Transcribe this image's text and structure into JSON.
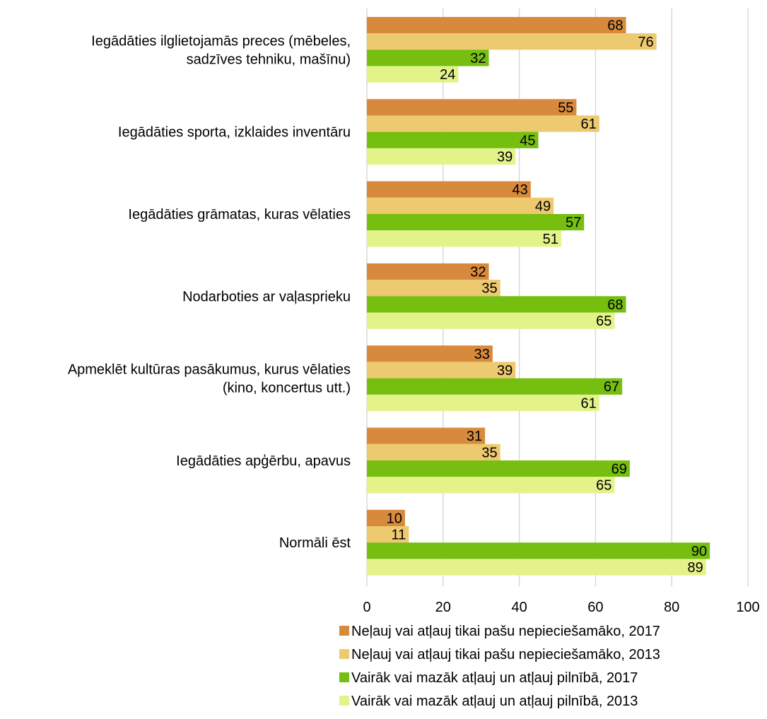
{
  "chart_data": {
    "type": "bar",
    "orientation": "horizontal",
    "categories": [
      [
        "Iegādāties ilglietojamās preces (mēbeles,",
        "sadzīves tehniku, mašīnu)"
      ],
      [
        "Iegādāties sporta, izklaides inventāru"
      ],
      [
        "Iegādāties grāmatas, kuras vēlaties"
      ],
      [
        "Nodarboties ar vaļasprieku"
      ],
      [
        "Apmeklēt kultūras pasākumus, kurus vēlaties",
        "(kino, koncertus utt.)"
      ],
      [
        "Iegādāties apģērbu, apavus"
      ],
      [
        "Normāli ēst"
      ]
    ],
    "series": [
      {
        "name": "Neļauj vai atļauj tikai pašu nepieciešamāko, 2017",
        "color": "#D88A3C",
        "values": [
          68,
          55,
          43,
          32,
          33,
          31,
          10
        ]
      },
      {
        "name": "Neļauj vai atļauj tikai pašu nepieciešamāko, 2013",
        "color": "#EDC96F",
        "values": [
          76,
          61,
          49,
          35,
          39,
          35,
          11
        ]
      },
      {
        "name": "Vairāk vai mazāk atļauj un atļauj pilnībā, 2017",
        "color": "#76BE10",
        "values": [
          32,
          45,
          57,
          68,
          67,
          69,
          90
        ]
      },
      {
        "name": "Vairāk vai mazāk atļauj un atļauj pilnībā, 2013",
        "color": "#E4F28A",
        "values": [
          24,
          39,
          51,
          65,
          61,
          65,
          89
        ]
      }
    ],
    "xlim": [
      0,
      100
    ],
    "xticks": [
      0,
      20,
      40,
      60,
      80,
      100
    ],
    "grid": true,
    "legend": "bottom",
    "title": "",
    "xlabel": "",
    "ylabel": ""
  }
}
